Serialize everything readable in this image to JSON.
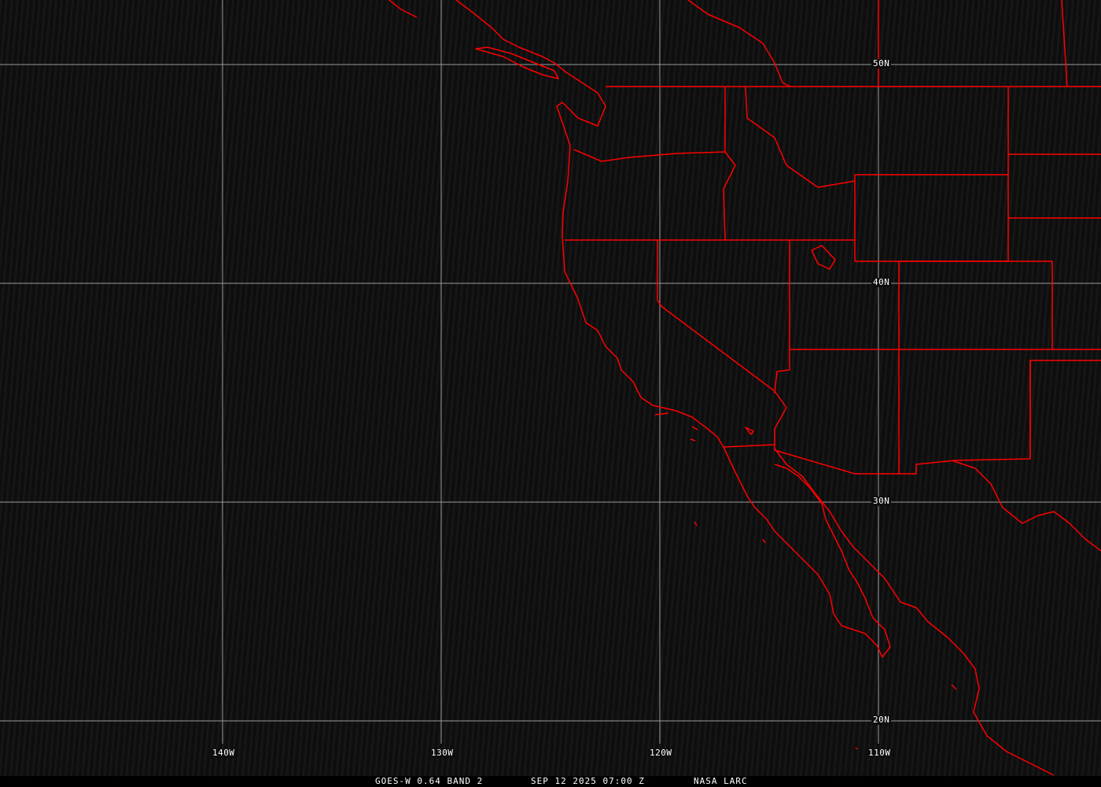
{
  "map": {
    "latitude_labels": [
      "50N",
      "40N",
      "30N",
      "20N"
    ],
    "longitude_labels": [
      "140W",
      "130W",
      "120W",
      "110W"
    ],
    "grid_color": "#9a9a9a",
    "boundary_color": "#ff0000",
    "background_color": "#0e0e0e"
  },
  "caption": {
    "product": "GOES-W 0.64 BAND 2",
    "datetime": "SEP 12 2025 07:00 Z",
    "source": "NASA LARC"
  }
}
